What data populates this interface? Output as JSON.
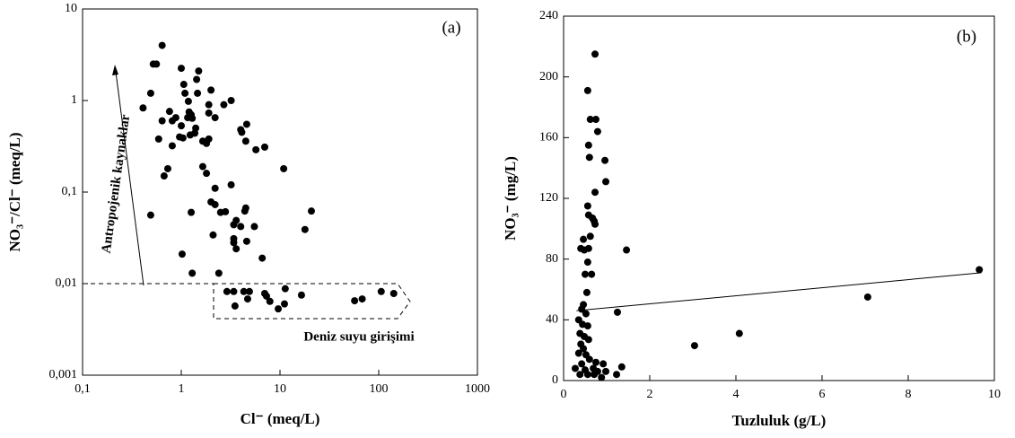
{
  "chart_data": [
    {
      "type": "scatter",
      "log_x": true,
      "log_y": true,
      "color": "#000000",
      "xlabel": "Cl⁻ (meq/L)",
      "ylabel": "NO₃⁻/Cl⁻ (meq/L)",
      "annotations": [
        "(a)",
        "Antropojenik kaynaklar",
        "Deniz suyu girişimi"
      ],
      "xlim": [
        0.1,
        1000
      ],
      "ylim": [
        0.001,
        10
      ],
      "xticks": [
        {
          "value": 0.1,
          "label": "0,1"
        },
        1,
        10,
        100,
        1000
      ],
      "yticks": [
        {
          "value": 0.001,
          "label": "0,001"
        },
        {
          "value": 0.01,
          "label": "0,01"
        },
        {
          "value": 0.1,
          "label": "0,1"
        },
        1,
        10
      ],
      "x": [
        0.64,
        0.52,
        0.56,
        1,
        1.5,
        1.43,
        0.49,
        1.06,
        1.09,
        2,
        1.46,
        3.2,
        0.41,
        1.18,
        2.7,
        1.9,
        0.76,
        1.2,
        0.88,
        0.81,
        1.16,
        1.26,
        1.29,
        1.9,
        4.6,
        2.2,
        1,
        0.64,
        1.4,
        4,
        4.1,
        1.23,
        0.96,
        1.04,
        1.37,
        1.9,
        0.59,
        4.5,
        0.81,
        5.7,
        7,
        1.8,
        1.65,
        10.9,
        0.73,
        1.65,
        0.67,
        1.8,
        3.2,
        2.2,
        2.0,
        0.49,
        2.2,
        1.26,
        2.5,
        2.8,
        4.5,
        4.4,
        3.6,
        5.5,
        4,
        3.4,
        20.8,
        17.9,
        2.1,
        3.4,
        3.4,
        4.6,
        3.6,
        6.6,
        1.02,
        1.29,
        2.4,
        2.9,
        3.4,
        3.5,
        4.3,
        4.9,
        4.7,
        7,
        7.3,
        7.9,
        9.6,
        11.3,
        11.1,
        16.5,
        57,
        68,
        106,
        142
      ],
      "values": [
        4.0,
        2.5,
        2.5,
        2.25,
        2.1,
        1.7,
        1.2,
        1.5,
        1.2,
        1.3,
        1.2,
        1.0,
        0.83,
        0.98,
        0.9,
        0.9,
        0.76,
        0.75,
        0.65,
        0.6,
        0.65,
        0.7,
        0.64,
        0.73,
        0.55,
        0.65,
        0.53,
        0.6,
        0.5,
        0.48,
        0.45,
        0.42,
        0.4,
        0.39,
        0.44,
        0.38,
        0.38,
        0.36,
        0.32,
        0.29,
        0.31,
        0.34,
        0.36,
        0.18,
        0.18,
        0.19,
        0.15,
        0.16,
        0.12,
        0.11,
        0.078,
        0.056,
        0.073,
        0.06,
        0.06,
        0.061,
        0.067,
        0.062,
        0.049,
        0.042,
        0.042,
        0.044,
        0.062,
        0.039,
        0.034,
        0.031,
        0.028,
        0.029,
        0.024,
        0.019,
        0.021,
        0.013,
        0.013,
        0.0082,
        0.0082,
        0.0057,
        0.0082,
        0.0082,
        0.0068,
        0.0078,
        0.0073,
        0.0064,
        0.0053,
        0.0088,
        0.006,
        0.0075,
        0.0065,
        0.0068,
        0.0082,
        0.0078
      ]
    },
    {
      "type": "scatter",
      "color": "#000000",
      "xlabel": "Tuzluluk (g/L)",
      "ylabel": "NO₃⁻ (mg/L)",
      "annotations": [
        "(b)"
      ],
      "xlim": [
        0,
        10
      ],
      "ylim": [
        0,
        240
      ],
      "xticks": [
        0,
        2,
        4,
        6,
        8,
        10
      ],
      "yticks": [
        0,
        40,
        80,
        120,
        160,
        200,
        240
      ],
      "trendline": {
        "x": [
          0.3,
          9.7
        ],
        "y": [
          46,
          71
        ]
      },
      "x": [
        0.73,
        0.56,
        0.62,
        0.75,
        0.79,
        0.58,
        0.6,
        0.96,
        0.98,
        0.73,
        0.56,
        0.58,
        0.67,
        0.71,
        0.73,
        0.46,
        0.62,
        0.4,
        0.48,
        1.46,
        0.58,
        0.56,
        0.65,
        0.5,
        0.54,
        0.46,
        0.42,
        1.25,
        0.52,
        0.35,
        0.44,
        0.56,
        0.38,
        0.48,
        0.58,
        0.4,
        0.46,
        0.35,
        0.52,
        0.6,
        0.75,
        0.42,
        0.27,
        0.5,
        0.69,
        0.79,
        0.92,
        0.98,
        1.35,
        1.23,
        0.38,
        0.56,
        0.71,
        0.88,
        3.04,
        4.08,
        7.06,
        9.65
      ],
      "values": [
        215,
        191,
        172,
        172,
        164,
        155,
        147,
        145,
        131,
        124,
        115,
        109,
        107,
        105,
        103,
        93,
        95,
        87,
        86,
        86,
        87,
        78,
        70,
        70,
        58,
        50,
        47,
        45,
        44,
        40,
        37,
        36,
        31,
        29,
        27,
        24,
        21,
        18,
        17,
        14,
        12,
        11,
        8,
        7,
        8,
        6,
        11,
        6,
        9,
        4,
        4,
        4,
        4,
        2,
        23,
        31,
        55,
        73
      ]
    }
  ]
}
